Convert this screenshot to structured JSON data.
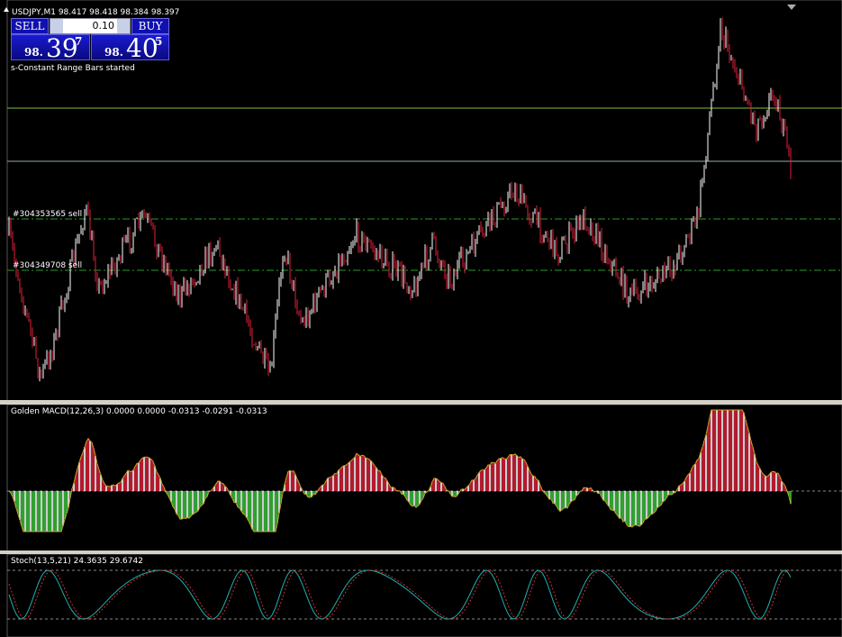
{
  "header": {
    "symbol_line": "USDJPY,M1  98.417 98.418 98.384 98.397"
  },
  "trade_panel": {
    "sell": "SELL",
    "buy": "BUY",
    "lot": "0.10",
    "bid": {
      "big": "98.",
      "main": "39",
      "small": "7"
    },
    "ask": {
      "big": "98.",
      "main": "40",
      "small": "5"
    }
  },
  "status": "s-Constant Range Bars started",
  "orders": [
    "#304353565 sell",
    "#304349708 sell"
  ],
  "indicators": {
    "macd": "Golden MACD(12,26,3) 0.0000 0.0000 -0.0313 -0.0291 -0.0313",
    "stoch": "Stoch(13,5,21) 24.3635 29.6742"
  }
}
